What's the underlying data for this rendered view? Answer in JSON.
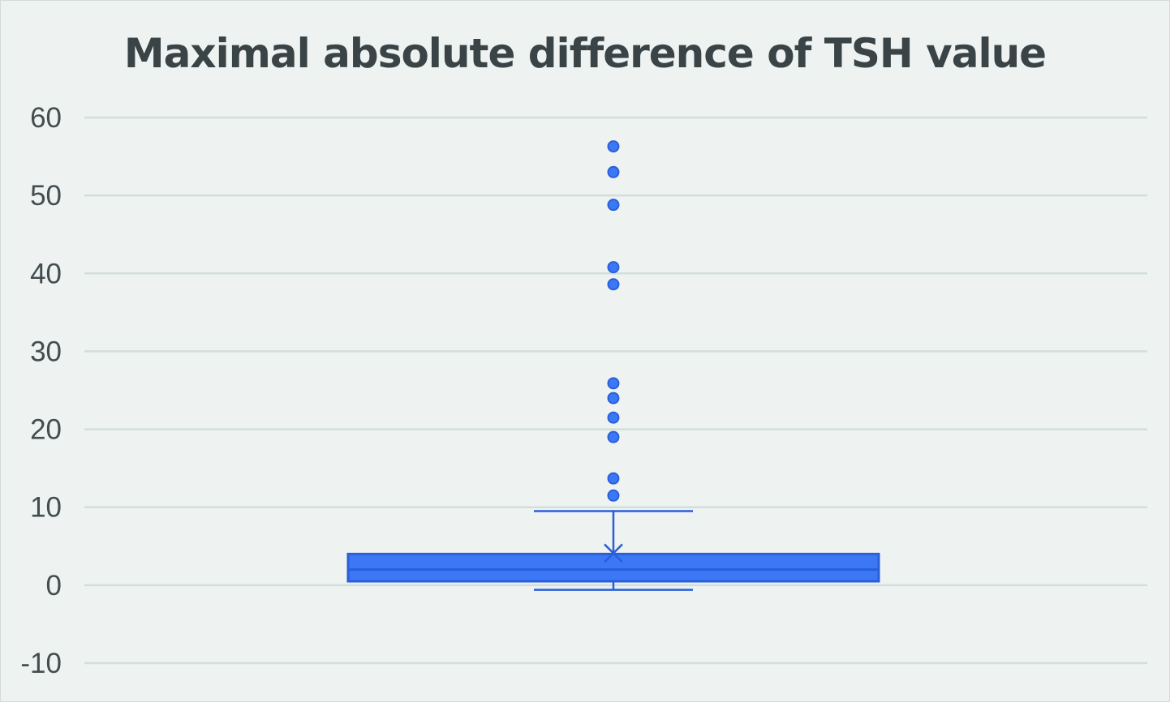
{
  "chart_data": {
    "type": "box",
    "title": "Maximal absolute difference of TSH value",
    "xlabel": "",
    "ylabel": "",
    "ylim": [
      -10,
      60
    ],
    "yticks": [
      -10,
      0,
      10,
      20,
      30,
      40,
      50,
      60
    ],
    "grid": true,
    "legend": "none",
    "box": {
      "whisker_low": -0.6,
      "q1": 0.5,
      "median": 2.0,
      "q3": 4.0,
      "whisker_high": 9.5,
      "mean": 4.1
    },
    "outliers": [
      11.5,
      13.7,
      19.0,
      21.5,
      24.0,
      25.9,
      38.6,
      40.8,
      48.8,
      53.0,
      56.3
    ]
  },
  "colors": {
    "box_fill": "#3c78f5",
    "box_stroke": "#2a5fd8",
    "grid": "#d2dedb",
    "axis_text": "#434d50",
    "title": "#3a4447",
    "background": "#eef3f2"
  }
}
